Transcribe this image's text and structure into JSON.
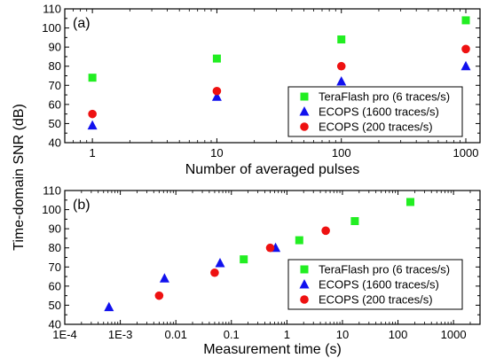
{
  "figure": {
    "shared_ylabel": "Time-domain SNR (dB)"
  },
  "colors": {
    "terraflash": "#22ee22",
    "ecops1600": "#1111ee",
    "ecops200": "#ee1111"
  },
  "chart_data": [
    {
      "type": "scatter",
      "panel_label": "(a)",
      "xlabel": "Number of averaged pulses",
      "ylabel": "Time-domain SNR (dB)",
      "xscale": "log",
      "xlim": [
        0.6,
        1300
      ],
      "ylim": [
        40,
        110
      ],
      "xticks": [
        1,
        10,
        100,
        1000
      ],
      "xtick_labels": [
        "1",
        "10",
        "100",
        "1000"
      ],
      "yticks": [
        40,
        50,
        60,
        70,
        80,
        90,
        100,
        110
      ],
      "ytick_labels": [
        "40",
        "50",
        "60",
        "70",
        "80",
        "90",
        "100",
        "110"
      ],
      "legend_position": "bottom-right",
      "series": [
        {
          "name": "TeraFlash pro (6 traces/s)",
          "marker": "square",
          "color": "#22ee22",
          "points": [
            [
              1,
              74
            ],
            [
              10,
              84
            ],
            [
              100,
              94
            ],
            [
              1000,
              104
            ]
          ]
        },
        {
          "name": "ECOPS (1600 traces/s)",
          "marker": "triangle",
          "color": "#1111ee",
          "points": [
            [
              1,
              49
            ],
            [
              10,
              64
            ],
            [
              100,
              72
            ],
            [
              1000,
              80
            ]
          ]
        },
        {
          "name": "ECOPS (200 traces/s)",
          "marker": "circle",
          "color": "#ee1111",
          "points": [
            [
              1,
              55
            ],
            [
              10,
              67
            ],
            [
              100,
              80
            ],
            [
              1000,
              89
            ]
          ]
        }
      ]
    },
    {
      "type": "scatter",
      "panel_label": "(b)",
      "xlabel": "Measurement time (s)",
      "ylabel": "Time-domain SNR (dB)",
      "xscale": "log",
      "xlim": [
        0.0001,
        3000
      ],
      "ylim": [
        40,
        110
      ],
      "xticks": [
        0.0001,
        0.001,
        0.01,
        0.1,
        1,
        10,
        100,
        1000
      ],
      "xtick_labels": [
        "1E-4",
        "1E-3",
        "0.01",
        "0.1",
        "1",
        "10",
        "100",
        "1000"
      ],
      "yticks": [
        40,
        50,
        60,
        70,
        80,
        90,
        100,
        110
      ],
      "ytick_labels": [
        "40",
        "50",
        "60",
        "70",
        "80",
        "90",
        "100",
        "110"
      ],
      "legend_position": "bottom-right",
      "series": [
        {
          "name": "TeraFlash pro (6 traces/s)",
          "marker": "square",
          "color": "#22ee22",
          "points": [
            [
              0.167,
              74
            ],
            [
              1.67,
              84
            ],
            [
              16.7,
              94
            ],
            [
              167,
              104
            ]
          ]
        },
        {
          "name": "ECOPS (1600 traces/s)",
          "marker": "triangle",
          "color": "#1111ee",
          "points": [
            [
              0.000625,
              49
            ],
            [
              0.00625,
              64
            ],
            [
              0.0625,
              72
            ],
            [
              0.625,
              80
            ]
          ]
        },
        {
          "name": "ECOPS (200 traces/s)",
          "marker": "circle",
          "color": "#ee1111",
          "points": [
            [
              0.005,
              55
            ],
            [
              0.05,
              67
            ],
            [
              0.5,
              80
            ],
            [
              5,
              89
            ]
          ]
        }
      ]
    }
  ]
}
